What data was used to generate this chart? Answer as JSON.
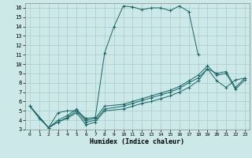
{
  "xlabel": "Humidex (Indice chaleur)",
  "bg_color": "#cce8e8",
  "grid_color": "#aacccc",
  "line_color": "#1a6666",
  "xlim": [
    -0.5,
    23.5
  ],
  "ylim": [
    3,
    16.5
  ],
  "xticks": [
    0,
    1,
    2,
    3,
    4,
    5,
    6,
    7,
    8,
    9,
    10,
    11,
    12,
    13,
    14,
    15,
    16,
    17,
    18,
    19,
    20,
    21,
    22,
    23
  ],
  "yticks": [
    3,
    4,
    5,
    6,
    7,
    8,
    9,
    10,
    11,
    12,
    13,
    14,
    15,
    16
  ],
  "series": [
    {
      "x": [
        0,
        1,
        2,
        3,
        4,
        5,
        6,
        7,
        8,
        9,
        10,
        11,
        12,
        13,
        14,
        15,
        16,
        17,
        18
      ],
      "y": [
        5.5,
        4.2,
        3.2,
        4.8,
        5.0,
        5.0,
        4.2,
        4.3,
        11.2,
        14.0,
        16.2,
        16.1,
        15.8,
        16.0,
        16.0,
        15.7,
        16.2,
        15.6,
        11.0
      ]
    },
    {
      "x": [
        0,
        2,
        3,
        4,
        5,
        6,
        7,
        8,
        10,
        11,
        12,
        13,
        14,
        15,
        16,
        17,
        18,
        19,
        20,
        21,
        22,
        23
      ],
      "y": [
        5.5,
        3.2,
        3.8,
        4.2,
        4.8,
        3.5,
        3.8,
        5.0,
        5.2,
        5.5,
        5.8,
        6.0,
        6.3,
        6.6,
        7.0,
        7.5,
        8.2,
        9.5,
        8.2,
        7.5,
        8.3,
        8.5
      ]
    },
    {
      "x": [
        0,
        2,
        3,
        4,
        5,
        6,
        7,
        8,
        10,
        11,
        12,
        13,
        14,
        15,
        16,
        17,
        18,
        19,
        20,
        21,
        22,
        23
      ],
      "y": [
        5.5,
        3.2,
        3.8,
        4.3,
        5.0,
        3.8,
        4.0,
        5.2,
        5.5,
        5.8,
        6.1,
        6.4,
        6.7,
        7.0,
        7.4,
        8.0,
        8.5,
        9.5,
        9.0,
        9.2,
        7.5,
        8.5
      ]
    },
    {
      "x": [
        0,
        2,
        3,
        4,
        5,
        6,
        7,
        8,
        10,
        11,
        12,
        13,
        14,
        15,
        16,
        17,
        18,
        19,
        20,
        21,
        22,
        23
      ],
      "y": [
        5.5,
        3.2,
        4.0,
        4.5,
        5.2,
        4.0,
        4.2,
        5.5,
        5.7,
        6.0,
        6.3,
        6.6,
        6.9,
        7.2,
        7.6,
        8.2,
        8.8,
        9.8,
        8.8,
        9.0,
        7.3,
        8.3
      ]
    }
  ]
}
